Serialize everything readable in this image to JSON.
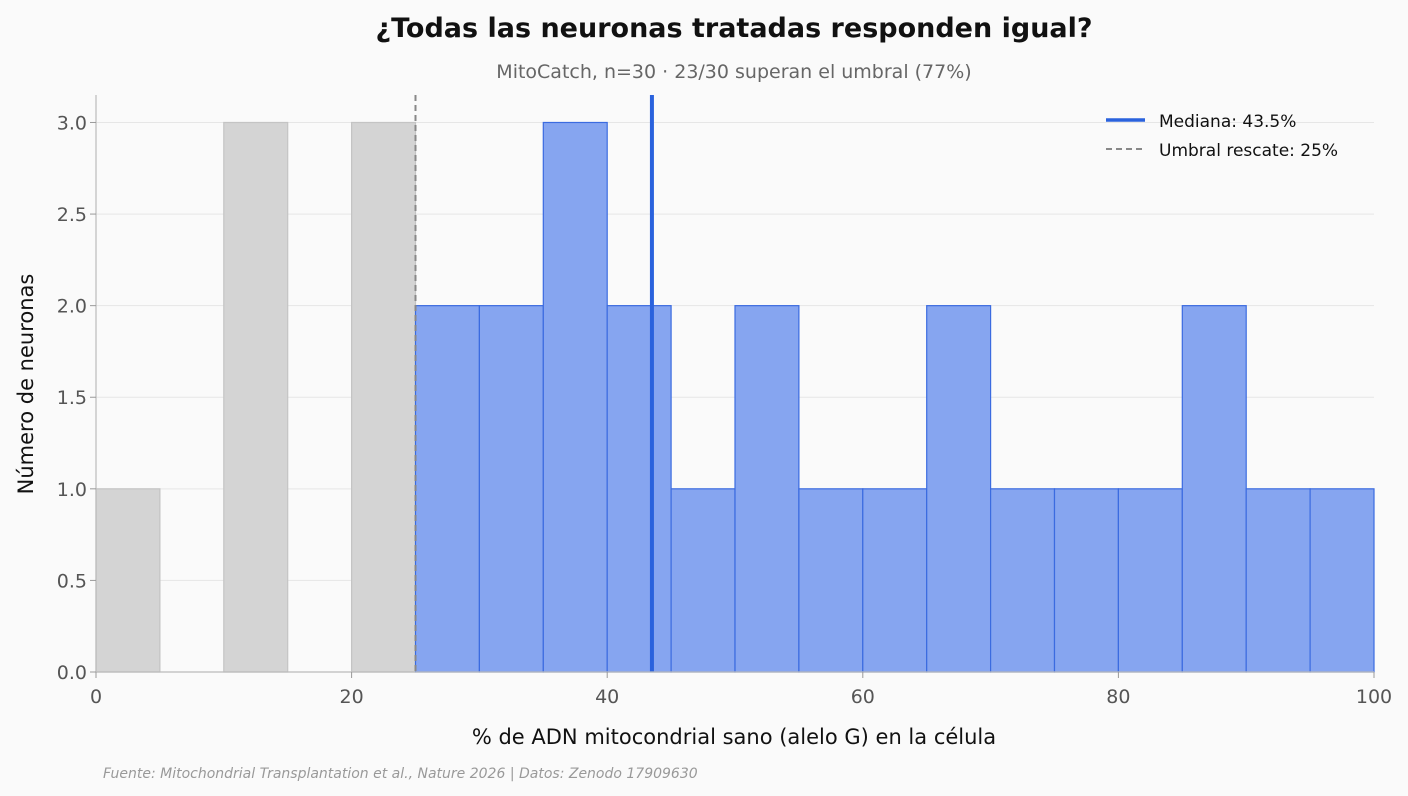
{
  "chart_data": {
    "type": "bar",
    "title": "¿Todas las neuronas tratadas responden igual?",
    "subtitle": "MitoCatch, n=30 · 23/30 superan el umbral (77%)",
    "xlabel": "% de ADN mitocondrial sano (alelo G) en la célula",
    "ylabel": "Número de neuronas",
    "source": "Fuente: Mitochondrial Transplantation et al., Nature 2026 | Datos: Zenodo 17909630",
    "xlim": [
      0,
      100
    ],
    "ylim": [
      0,
      3.15
    ],
    "xticks": [
      0,
      20,
      40,
      60,
      80,
      100
    ],
    "yticks": [
      0.0,
      0.5,
      1.0,
      1.5,
      2.0,
      2.5,
      3.0
    ],
    "xtick_labels": [
      "0",
      "20",
      "40",
      "60",
      "80",
      "100"
    ],
    "ytick_labels": [
      "0.0",
      "0.5",
      "1.0",
      "1.5",
      "2.0",
      "2.5",
      "3.0"
    ],
    "grid": "horizontal",
    "legend_position": "top-right",
    "series": [
      {
        "name": "below-threshold",
        "color": "#d4d4d4",
        "edge": "#c4c4c4",
        "bins": [
          {
            "start": 0,
            "end": 5,
            "count": 1
          },
          {
            "start": 10,
            "end": 15,
            "count": 3
          },
          {
            "start": 20,
            "end": 25,
            "count": 3
          }
        ]
      },
      {
        "name": "above-threshold",
        "color": "#86a5f0",
        "edge": "#3b6be0",
        "bins": [
          {
            "start": 25,
            "end": 30,
            "count": 2
          },
          {
            "start": 30,
            "end": 35,
            "count": 2
          },
          {
            "start": 35,
            "end": 40,
            "count": 3
          },
          {
            "start": 40,
            "end": 45,
            "count": 2
          },
          {
            "start": 45,
            "end": 50,
            "count": 1
          },
          {
            "start": 50,
            "end": 55,
            "count": 2
          },
          {
            "start": 55,
            "end": 60,
            "count": 1
          },
          {
            "start": 60,
            "end": 65,
            "count": 1
          },
          {
            "start": 65,
            "end": 70,
            "count": 2
          },
          {
            "start": 70,
            "end": 75,
            "count": 1
          },
          {
            "start": 75,
            "end": 80,
            "count": 1
          },
          {
            "start": 80,
            "end": 85,
            "count": 1
          },
          {
            "start": 85,
            "end": 90,
            "count": 2
          },
          {
            "start": 90,
            "end": 95,
            "count": 1
          },
          {
            "start": 95,
            "end": 100,
            "count": 1
          }
        ]
      }
    ],
    "reference_lines": [
      {
        "name": "median",
        "value": 43.5,
        "label": "Mediana: 43.5%",
        "color": "#2a62dd",
        "style": "solid"
      },
      {
        "name": "threshold",
        "value": 25,
        "label": "Umbral rescate: 25%",
        "color": "#888888",
        "style": "dashed"
      }
    ]
  }
}
